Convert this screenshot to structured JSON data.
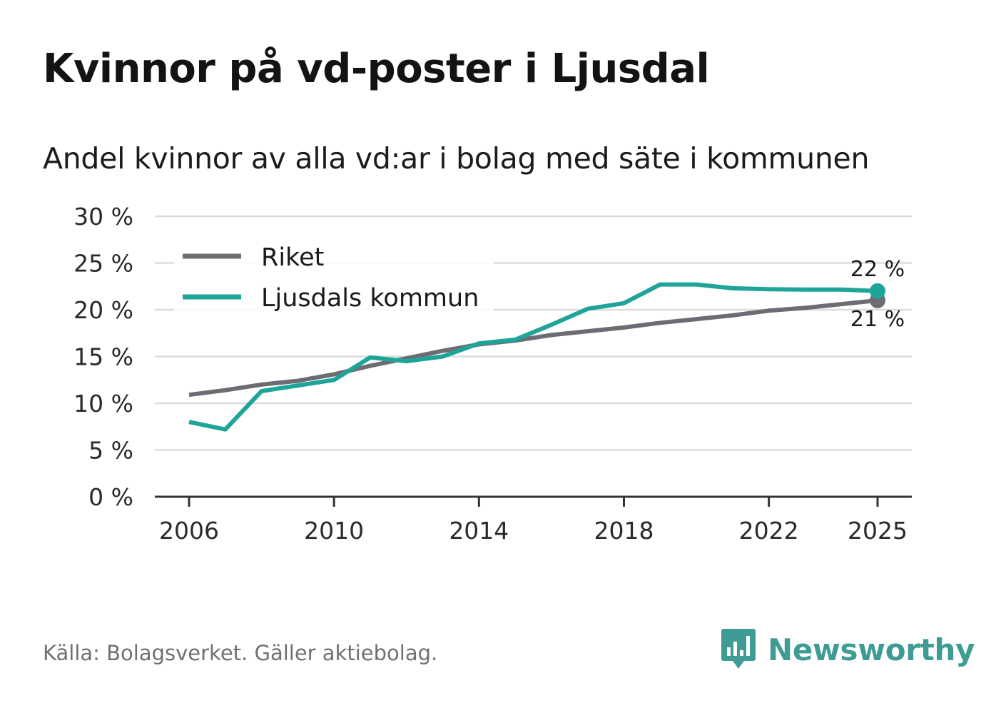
{
  "title": "Kvinnor på vd-poster i Ljusdal",
  "subtitle": "Andel kvinnor av alla vd:ar i bolag med säte i kommunen",
  "source": "Källa: Bolagsverket. Gäller aktiebolag.",
  "brand": "Newsworthy",
  "colors": {
    "riket": "#6d6c72",
    "kommun": "#1fa49a",
    "grid": "#dcdcdc",
    "axis": "#333333",
    "brand": "#3e9c94"
  },
  "chart_data": {
    "type": "line",
    "title": "Kvinnor på vd-poster i Ljusdal",
    "subtitle": "Andel kvinnor av alla vd:ar i bolag med säte i kommunen",
    "xlabel": "",
    "ylabel": "",
    "xlim": [
      2006,
      2025
    ],
    "ylim": [
      0,
      30
    ],
    "y_ticks": [
      0,
      5,
      10,
      15,
      20,
      25,
      30
    ],
    "y_tick_labels": [
      "0 %",
      "5 %",
      "10 %",
      "15 %",
      "20 %",
      "25 %",
      "30 %"
    ],
    "x_ticks": [
      2006,
      2010,
      2014,
      2018,
      2022,
      2025
    ],
    "x_tick_labels": [
      "2006",
      "2010",
      "2014",
      "2018",
      "2022",
      "2025"
    ],
    "grid": true,
    "legend": "top-left",
    "x": [
      2006,
      2007,
      2008,
      2009,
      2010,
      2011,
      2012,
      2013,
      2014,
      2015,
      2016,
      2017,
      2018,
      2019,
      2020,
      2021,
      2022,
      2023,
      2024,
      2025
    ],
    "series": [
      {
        "name": "Riket",
        "color": "#6d6c72",
        "values": [
          10.9,
          11.4,
          12.0,
          12.4,
          13.1,
          14.0,
          14.8,
          15.6,
          16.3,
          16.7,
          17.3,
          17.7,
          18.1,
          18.6,
          19.0,
          19.4,
          19.9,
          20.2,
          20.6,
          21.0
        ],
        "end_label": "21 %"
      },
      {
        "name": "Ljusdals kommun",
        "color": "#1fa49a",
        "values": [
          8.0,
          7.2,
          11.3,
          11.9,
          12.5,
          14.9,
          14.5,
          15.0,
          16.4,
          16.8,
          18.4,
          20.1,
          20.7,
          22.7,
          22.7,
          22.3,
          22.2,
          22.15,
          22.15,
          22.0
        ],
        "end_label": "22 %"
      }
    ]
  }
}
